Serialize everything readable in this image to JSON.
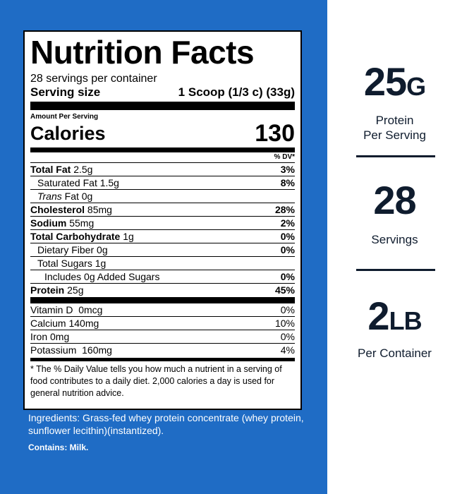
{
  "label": {
    "title": "Nutrition Facts",
    "servings_per_container": "28 servings per container",
    "serving_size_label": "Serving size",
    "serving_size_value": "1 Scoop (1/3 c) (33g)",
    "amount_per_serving": "Amount Per Serving",
    "calories_label": "Calories",
    "calories_value": "130",
    "dv_header": "% DV*",
    "nutrients": [
      {
        "name": "Total Fat",
        "amount": "2.5g",
        "dv": "3%"
      },
      {
        "name": "Saturated Fat",
        "amount": "1.5g",
        "dv": "8%"
      },
      {
        "name_italic": "Trans",
        "name": "Fat",
        "amount": "0g",
        "dv": ""
      },
      {
        "name": "Cholesterol",
        "amount": "85mg",
        "dv": "28%"
      },
      {
        "name": "Sodium",
        "amount": "55mg",
        "dv": "2%"
      },
      {
        "name": "Total Carbohydrate",
        "amount": "1g",
        "dv": "0%"
      },
      {
        "name": "Dietary Fiber",
        "amount": "0g",
        "dv": "0%"
      },
      {
        "name": "Total Sugars",
        "amount": "1g",
        "dv": ""
      },
      {
        "name": "Includes 0g Added Sugars",
        "amount": "",
        "dv": "0%"
      },
      {
        "name": "Protein",
        "amount": "25g",
        "dv": "45%"
      }
    ],
    "vitamins": [
      {
        "name": "Vitamin D",
        "amount": "0mcg",
        "dv": "0%"
      },
      {
        "name": "Calcium",
        "amount": "140mg",
        "dv": "10%"
      },
      {
        "name": "Iron",
        "amount": "0mg",
        "dv": "0%"
      },
      {
        "name": "Potassium",
        "amount": "160mg",
        "dv": "4%"
      }
    ],
    "footnote": "* The % Daily Value tells you how much a nutrient in a serving of food contributes to a daily diet. 2,000 calories a day is used for general nutrition advice."
  },
  "ingredients": "Ingredients: Grass-fed whey protein concentrate (whey protein, sunflower lecithin)(instantized).",
  "contains": "Contains: Milk.",
  "stats": [
    {
      "big": "25",
      "unit": "G",
      "caption_1": "Protein",
      "caption_2": "Per Serving"
    },
    {
      "big": "28",
      "unit": "",
      "caption_1": "Servings",
      "caption_2": ""
    },
    {
      "big": "2",
      "unit": "LB",
      "caption_1": "Per Container",
      "caption_2": ""
    }
  ],
  "colors": {
    "panel_blue": "#1f6cc5",
    "stat_text": "#0f1c2e"
  }
}
